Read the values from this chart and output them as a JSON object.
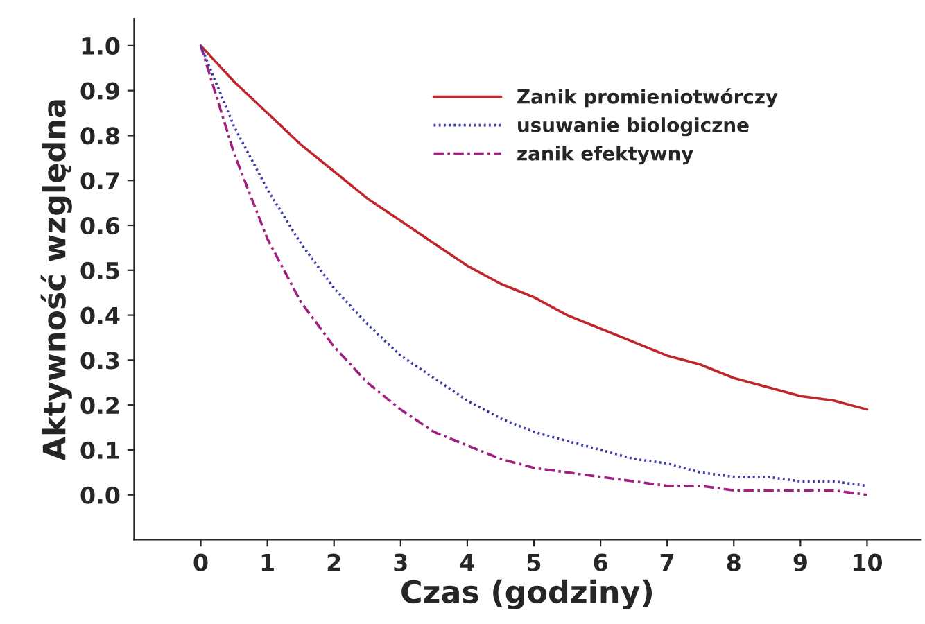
{
  "chart_data": {
    "type": "line",
    "xlabel": "Czas (godziny)",
    "ylabel": "Aktywność względna",
    "x": [
      0,
      0.5,
      1,
      1.5,
      2,
      2.5,
      3,
      3.5,
      4,
      4.5,
      5,
      5.5,
      6,
      6.5,
      7,
      7.5,
      8,
      8.5,
      9,
      9.5,
      10
    ],
    "series": [
      {
        "name": "Zanik promieniotwórczy",
        "color": "#c0272d",
        "line_style": "solid",
        "values": [
          1.0,
          0.92,
          0.85,
          0.78,
          0.72,
          0.66,
          0.61,
          0.56,
          0.51,
          0.47,
          0.44,
          0.4,
          0.37,
          0.34,
          0.31,
          0.29,
          0.26,
          0.24,
          0.22,
          0.21,
          0.19
        ]
      },
      {
        "name": "usuwanie biologiczne",
        "color": "#3b3bb0",
        "line_style": "dotted",
        "values": [
          1.0,
          0.82,
          0.68,
          0.56,
          0.46,
          0.38,
          0.31,
          0.26,
          0.21,
          0.17,
          0.14,
          0.12,
          0.1,
          0.08,
          0.07,
          0.05,
          0.04,
          0.04,
          0.03,
          0.03,
          0.02
        ]
      },
      {
        "name": "zanik efektywny",
        "color": "#a0207f",
        "line_style": "dashdot",
        "values": [
          1.0,
          0.76,
          0.57,
          0.43,
          0.33,
          0.25,
          0.19,
          0.14,
          0.11,
          0.08,
          0.06,
          0.05,
          0.04,
          0.03,
          0.02,
          0.02,
          0.01,
          0.01,
          0.01,
          0.01,
          0.0
        ]
      }
    ],
    "xlim": [
      -1,
      10.8
    ],
    "ylim": [
      -0.1,
      1.06
    ],
    "xticks": [
      0,
      1,
      2,
      3,
      4,
      5,
      6,
      7,
      8,
      9,
      10
    ],
    "yticks": [
      {
        "value": 0,
        "label": "0.0"
      },
      0.1,
      0.2,
      0.3,
      0.4,
      0.5,
      0.6,
      0.7,
      0.8,
      0.9,
      {
        "value": 1,
        "label": "1.0"
      }
    ],
    "grid": false,
    "legend": "top",
    "marker": "none"
  }
}
